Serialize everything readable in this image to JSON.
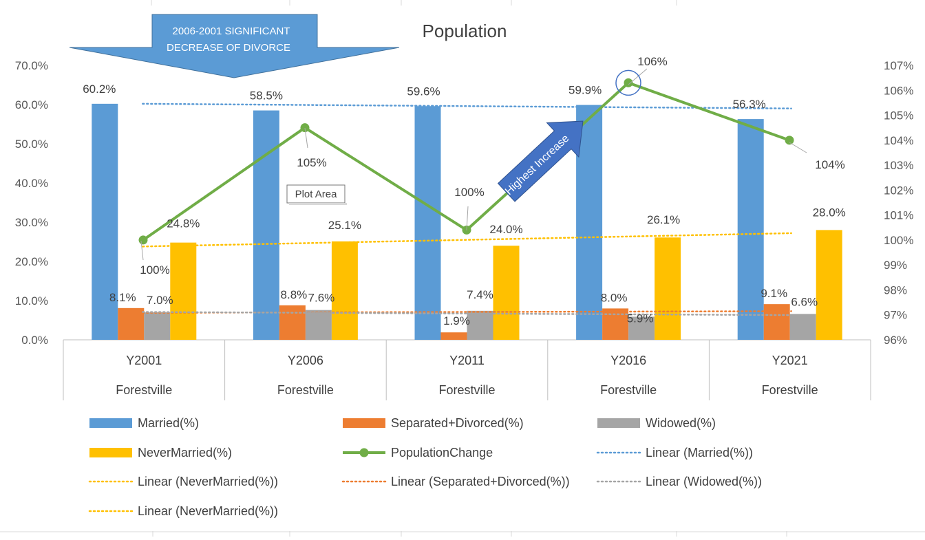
{
  "chart_data": {
    "type": "bar",
    "title": "Population",
    "categories": [
      "Y2001",
      "Y2006",
      "Y2011",
      "Y2016",
      "Y2021"
    ],
    "category_group": [
      "Forestville",
      "Forestville",
      "Forestville",
      "Forestville",
      "Forestville"
    ],
    "y_left": {
      "ylim": [
        0,
        70
      ],
      "ticks": [
        "0.0%",
        "10.0%",
        "20.0%",
        "30.0%",
        "40.0%",
        "50.0%",
        "60.0%",
        "70.0%"
      ]
    },
    "y_right": {
      "ylim": [
        96,
        107
      ],
      "ticks": [
        "96%",
        "97%",
        "98%",
        "99%",
        "100%",
        "101%",
        "102%",
        "103%",
        "104%",
        "105%",
        "106%",
        "107%"
      ]
    },
    "series": [
      {
        "name": "Married(%)",
        "kind": "bar",
        "color": "#5b9bd5",
        "values": [
          60.2,
          58.5,
          59.6,
          59.9,
          56.3
        ],
        "labels": [
          "60.2%",
          "58.5%",
          "59.6%",
          "59.9%",
          "56.3%"
        ]
      },
      {
        "name": "Separated+Divorced(%)",
        "kind": "bar",
        "color": "#ed7d31",
        "values": [
          8.1,
          8.8,
          1.9,
          8.0,
          9.1
        ],
        "labels": [
          "8.1%",
          "8.8%",
          "1.9%",
          "8.0%",
          "9.1%"
        ]
      },
      {
        "name": "Widowed(%)",
        "kind": "bar",
        "color": "#a5a5a5",
        "values": [
          7.0,
          7.6,
          7.4,
          5.9,
          6.6
        ],
        "labels": [
          "7.0%",
          "7.6%",
          "7.4%",
          "5.9%",
          "6.6%"
        ]
      },
      {
        "name": "NeverMarried(%)",
        "kind": "bar",
        "color": "#ffc000",
        "values": [
          24.8,
          25.1,
          24.0,
          26.1,
          28.0
        ],
        "labels": [
          "24.8%",
          "25.1%",
          "24.0%",
          "26.1%",
          "28.0%"
        ]
      },
      {
        "name": "PopulationChange",
        "kind": "line",
        "axis": "right",
        "color": "#70ad47",
        "values": [
          100,
          104.5,
          100.4,
          106.3,
          104.0
        ],
        "labels": [
          "100%",
          "105%",
          "100%",
          "106%",
          "104%"
        ]
      }
    ],
    "trendlines": [
      {
        "name": "Linear (Married(%))",
        "color": "#5b9bd5",
        "from": 60.2,
        "to": 59.0
      },
      {
        "name": "Linear (NeverMarried(%))",
        "color": "#ffc000",
        "from": 23.8,
        "to": 27.2
      },
      {
        "name": "Linear (Separated+Divorced(%))",
        "color": "#ed7d31",
        "from": 6.9,
        "to": 7.3
      },
      {
        "name": "Linear (Widowed(%))",
        "color": "#a5a5a5",
        "from": 7.1,
        "to": 6.3
      },
      {
        "name": "Linear (NeverMarried(%))",
        "color": "#ffc000",
        "from": 23.8,
        "to": 27.2
      }
    ],
    "annotations": {
      "callout": "2006-2001 SIGNIFICANT DECREASE OF DIVORCE",
      "callout_lines": [
        "2006-2001 SIGNIFICANT",
        "DECREASE OF DIVORCE"
      ],
      "arrow_label": "Highest Increase",
      "tooltip": "Plot Area"
    },
    "legend": [
      {
        "label": "Married(%)",
        "type": "bar",
        "color": "#5b9bd5"
      },
      {
        "label": "Separated+Divorced(%)",
        "type": "bar",
        "color": "#ed7d31"
      },
      {
        "label": "Widowed(%)",
        "type": "bar",
        "color": "#a5a5a5"
      },
      {
        "label": "NeverMarried(%)",
        "type": "bar",
        "color": "#ffc000"
      },
      {
        "label": "PopulationChange",
        "type": "line-marker",
        "color": "#70ad47"
      },
      {
        "label": "Linear (Married(%))",
        "type": "dotted",
        "color": "#5b9bd5"
      },
      {
        "label": "Linear (NeverMarried(%))",
        "type": "dotted",
        "color": "#ffc000"
      },
      {
        "label": "Linear (Separated+Divorced(%))",
        "type": "dotted",
        "color": "#ed7d31"
      },
      {
        "label": "Linear (Widowed(%))",
        "type": "dotted",
        "color": "#a5a5a5"
      },
      {
        "label": "Linear (NeverMarried(%))",
        "type": "dotted",
        "color": "#ffc000"
      }
    ],
    "legend_placement": "bottom",
    "grid": false
  }
}
